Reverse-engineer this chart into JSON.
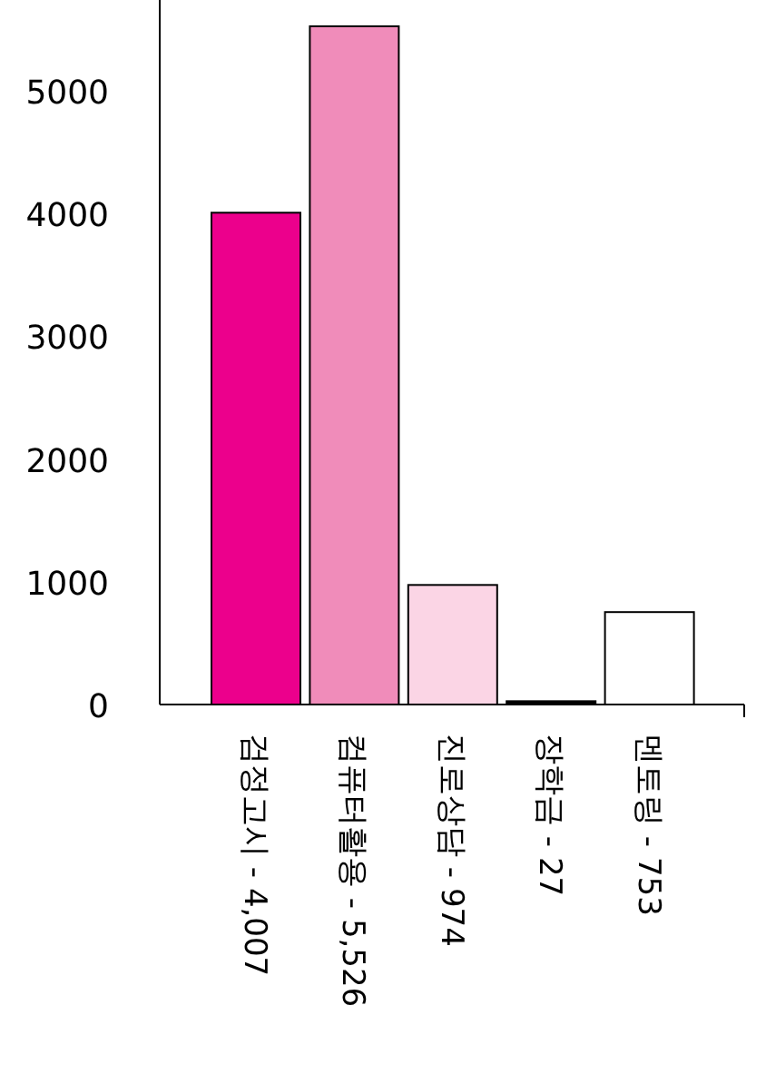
{
  "chart_data": {
    "type": "bar",
    "categories": [
      "검정고시 - 4,007",
      "컴퓨터활용 - 5,526",
      "진로상담 - 974",
      "장학금 - 27",
      "멘토링 - 753"
    ],
    "values": [
      4007,
      5526,
      974,
      27,
      753
    ],
    "colors": [
      "#ec008c",
      "#f08cba",
      "#fbd5e5",
      "#000000",
      "#ffffff"
    ],
    "ylim": [
      0,
      5740
    ],
    "yticks": [
      0,
      1000,
      2000,
      3000,
      4000,
      5000
    ]
  }
}
